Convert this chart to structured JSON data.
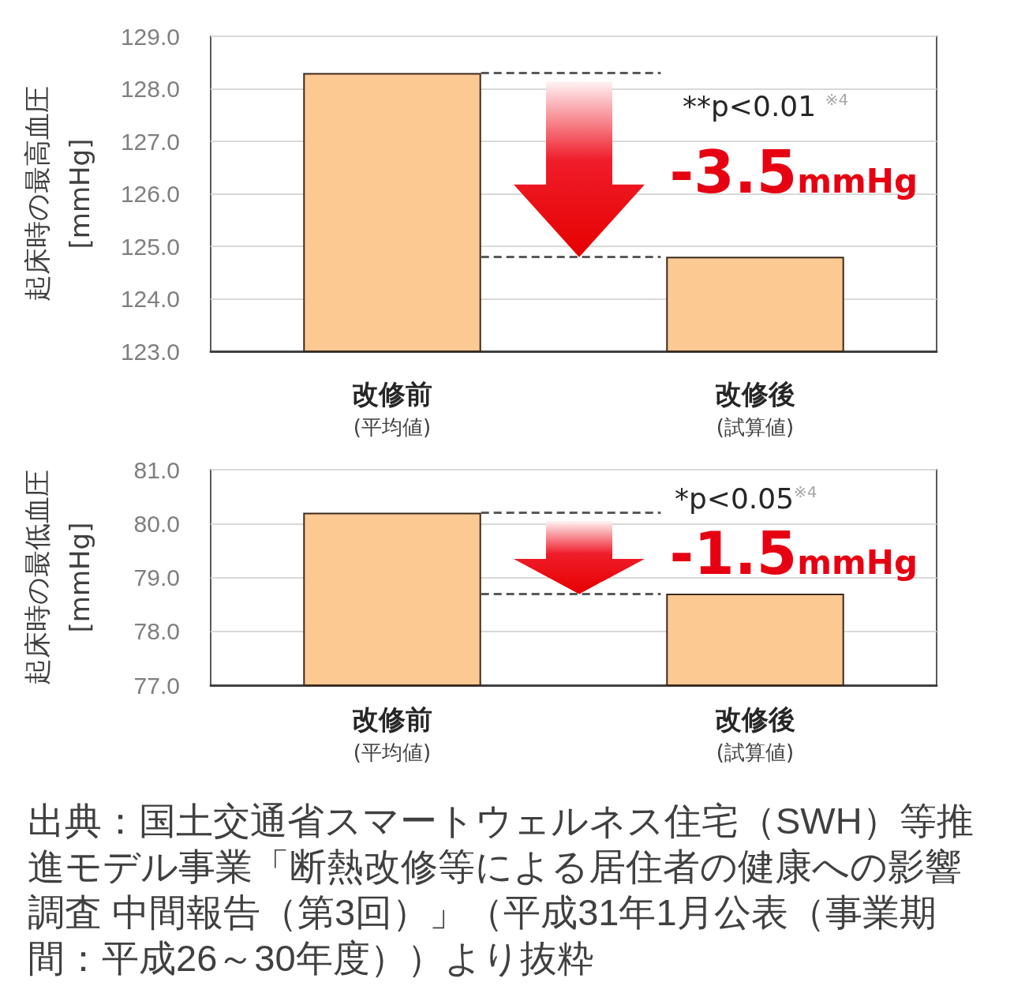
{
  "chart_data": [
    {
      "type": "bar",
      "ylabel": "起床時の最高血圧\n[mmHg]",
      "categories": [
        "改修前\n(平均値)",
        "改修後\n(試算値)"
      ],
      "values": [
        128.3,
        124.8
      ],
      "color": "#fcc992",
      "ylim": [
        123,
        129
      ],
      "yticks": [
        {
          "value": 123,
          "label": "123.0"
        },
        {
          "value": 124,
          "label": "124.0"
        },
        {
          "value": 125,
          "label": "125.0"
        },
        {
          "value": 126,
          "label": "126.0"
        },
        {
          "value": 127,
          "label": "127.0"
        },
        {
          "value": 128,
          "label": "128.0"
        },
        {
          "value": 129,
          "label": "129.0"
        }
      ],
      "grid": "y",
      "ref_lines": [
        {
          "axis": "y",
          "value": 128.3,
          "color": "#595959",
          "line_style": "dashed"
        },
        {
          "axis": "y",
          "value": 124.8,
          "color": "#595959",
          "line_style": "dashed"
        }
      ],
      "annotations": [
        "**p<0.01 $^{※4}$",
        "-3.5mmHg"
      ]
    },
    {
      "type": "bar",
      "ylabel": "起床時の最低血圧\n[mmHg]",
      "categories": [
        "改修前\n(平均値)",
        "改修後\n(試算値)"
      ],
      "values": [
        80.2,
        78.7
      ],
      "color": "#fcc992",
      "ylim": [
        77,
        81
      ],
      "yticks": [
        {
          "value": 77,
          "label": "77.0"
        },
        {
          "value": 78,
          "label": "78.0"
        },
        {
          "value": 79,
          "label": "79.0"
        },
        {
          "value": 80,
          "label": "80.0"
        },
        {
          "value": 81,
          "label": "81.0"
        }
      ],
      "grid": "y",
      "ref_lines": [
        {
          "axis": "y",
          "value": 80.2,
          "color": "#595959",
          "line_style": "dashed"
        },
        {
          "axis": "y",
          "value": 78.7,
          "color": "#595959",
          "line_style": "dashed"
        }
      ],
      "annotations": [
        "*p<0.05$^{※4}$",
        "-1.5mmHg",
        "出典：国土交通省スマートウェルネス住宅（SWH）等推進モデル事業「断熱改修等による居住者の健康への影響調査 中間報告（第3回）」（平成31年1月公表（事業期間：平成26～30年度））より抜粋"
      ]
    }
  ]
}
